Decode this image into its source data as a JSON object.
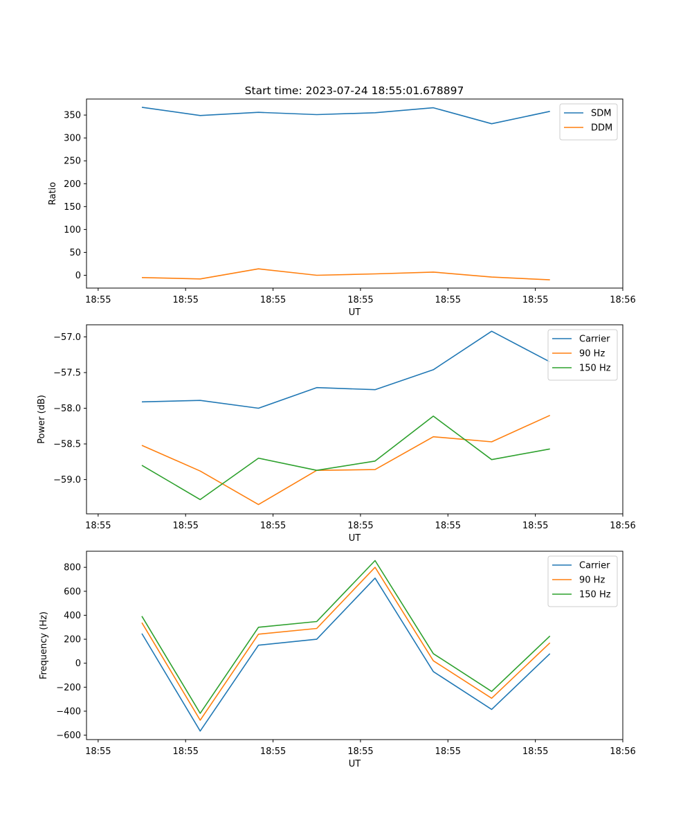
{
  "figure": {
    "title": "Start time: 2023-07-24 18:55:01.678897"
  },
  "colors": {
    "blue": "#1f77b4",
    "orange": "#ff7f0e",
    "green": "#2ca02c"
  },
  "chart_data": [
    {
      "type": "line",
      "title": "Start time: 2023-07-24 18:55:01.678897",
      "xlabel": "UT",
      "ylabel": "Ratio",
      "xlim": [
        -0.2,
        9.0
      ],
      "ylim": [
        -28,
        385
      ],
      "x": [
        0.75,
        1.75,
        2.75,
        3.75,
        4.75,
        5.75,
        6.75,
        7.75
      ],
      "x_ticks": [
        0,
        1.5,
        3,
        4.5,
        6,
        7.5,
        9
      ],
      "x_tick_labels": [
        "18:55",
        "18:55",
        "18:55",
        "18:55",
        "18:55",
        "18:55",
        "18:56"
      ],
      "y_ticks": [
        0,
        50,
        100,
        150,
        200,
        250,
        300,
        350
      ],
      "y_tick_labels": [
        "0",
        "50",
        "100",
        "150",
        "200",
        "250",
        "300",
        "350"
      ],
      "legend_position": "top-right",
      "series": [
        {
          "name": "SDM",
          "color": "#1f77b4",
          "values": [
            367,
            349,
            356,
            351,
            355,
            366,
            331,
            358
          ]
        },
        {
          "name": "DDM",
          "color": "#ff7f0e",
          "values": [
            -5,
            -8,
            14,
            0,
            3,
            7,
            -4,
            -10
          ]
        }
      ]
    },
    {
      "type": "line",
      "title": "",
      "xlabel": "UT",
      "ylabel": "Power (dB)",
      "xlim": [
        -0.2,
        9.0
      ],
      "ylim": [
        -59.48,
        -56.83
      ],
      "x": [
        0.75,
        1.75,
        2.75,
        3.75,
        4.75,
        5.75,
        6.75,
        7.75
      ],
      "x_ticks": [
        0,
        1.5,
        3,
        4.5,
        6,
        7.5,
        9
      ],
      "x_tick_labels": [
        "18:55",
        "18:55",
        "18:55",
        "18:55",
        "18:55",
        "18:55",
        "18:56"
      ],
      "y_ticks": [
        -59.0,
        -58.5,
        -58.0,
        -57.5,
        -57.0
      ],
      "y_tick_labels": [
        "−59.0",
        "−58.5",
        "−58.0",
        "−57.5",
        "−57.0"
      ],
      "legend_position": "top-right",
      "series": [
        {
          "name": "Carrier",
          "color": "#1f77b4",
          "values": [
            -57.91,
            -57.89,
            -58.0,
            -57.71,
            -57.74,
            -57.46,
            -56.92,
            -57.35
          ]
        },
        {
          "name": "90 Hz",
          "color": "#ff7f0e",
          "values": [
            -58.52,
            -58.88,
            -59.35,
            -58.87,
            -58.86,
            -58.4,
            -58.47,
            -58.1
          ]
        },
        {
          "name": "150 Hz",
          "color": "#2ca02c",
          "values": [
            -58.8,
            -59.28,
            -58.7,
            -58.87,
            -58.74,
            -58.11,
            -58.72,
            -58.57
          ]
        }
      ]
    },
    {
      "type": "line",
      "title": "",
      "xlabel": "UT",
      "ylabel": "Frequency (Hz)",
      "xlim": [
        -0.2,
        9.0
      ],
      "ylim": [
        -637,
        934
      ],
      "x": [
        0.75,
        1.75,
        2.75,
        3.75,
        4.75,
        5.75,
        6.75,
        7.75
      ],
      "x_ticks": [
        0,
        1.5,
        3,
        4.5,
        6,
        7.5,
        9
      ],
      "x_tick_labels": [
        "18:55",
        "18:55",
        "18:55",
        "18:55",
        "18:55",
        "18:55",
        "18:56"
      ],
      "y_ticks": [
        -600,
        -400,
        -200,
        0,
        200,
        400,
        600,
        800
      ],
      "y_tick_labels": [
        "−600",
        "−400",
        "−200",
        "0",
        "200",
        "400",
        "600",
        "800"
      ],
      "legend_position": "top-right",
      "series": [
        {
          "name": "Carrier",
          "color": "#1f77b4",
          "values": [
            247,
            -566,
            150,
            200,
            710,
            -70,
            -385,
            80
          ]
        },
        {
          "name": "90 Hz",
          "color": "#ff7f0e",
          "values": [
            338,
            -475,
            242,
            290,
            800,
            20,
            -292,
            170
          ]
        },
        {
          "name": "150 Hz",
          "color": "#2ca02c",
          "values": [
            392,
            -418,
            300,
            348,
            856,
            80,
            -235,
            227
          ]
        }
      ]
    }
  ]
}
